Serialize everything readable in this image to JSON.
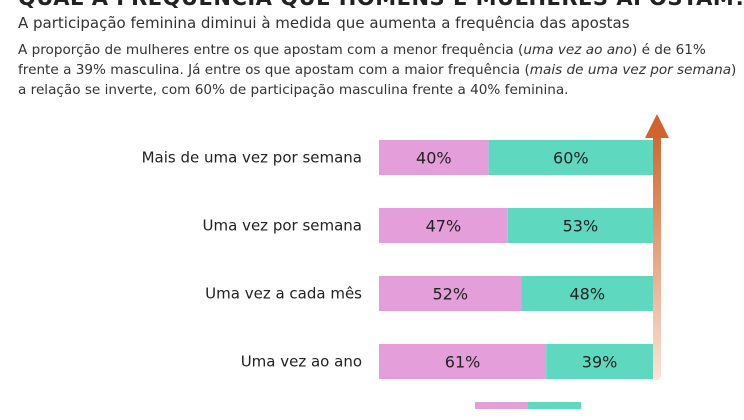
{
  "title": "QUAL A FREQUÊNCIA QUE HOMENS E MULHERES APOSTAM?",
  "subtitle": "A participação feminina diminui à medida que aumenta a frequência das apostas",
  "description": {
    "p1": "A proporção de mulheres entre os que apostam com a menor frequência (",
    "i1": "uma vez ao ano",
    "p2": ") é de 61% frente a 39% masculina. Já entre os que apostam com a maior frequência (",
    "i2": "mais de uma vez por semana",
    "p3": ") a relação se inverte, com 60% de participação masculina frente a 40% feminina."
  },
  "chart_data": {
    "type": "bar",
    "orientation": "horizontal",
    "stacked": true,
    "categories": [
      "Mais de uma vez por semana",
      "Uma vez por semana",
      "Uma vez a cada mês",
      "Uma vez ao ano"
    ],
    "series": [
      {
        "values": [
          40,
          47,
          52,
          61
        ],
        "color": "#e49fdb"
      },
      {
        "values": [
          60,
          53,
          48,
          39
        ],
        "color": "#5fd8c0"
      }
    ],
    "value_suffix": "%",
    "xlim": [
      0,
      100
    ],
    "grid": false,
    "arrow_color": "#d2632c",
    "legend_placement": "bottom"
  }
}
